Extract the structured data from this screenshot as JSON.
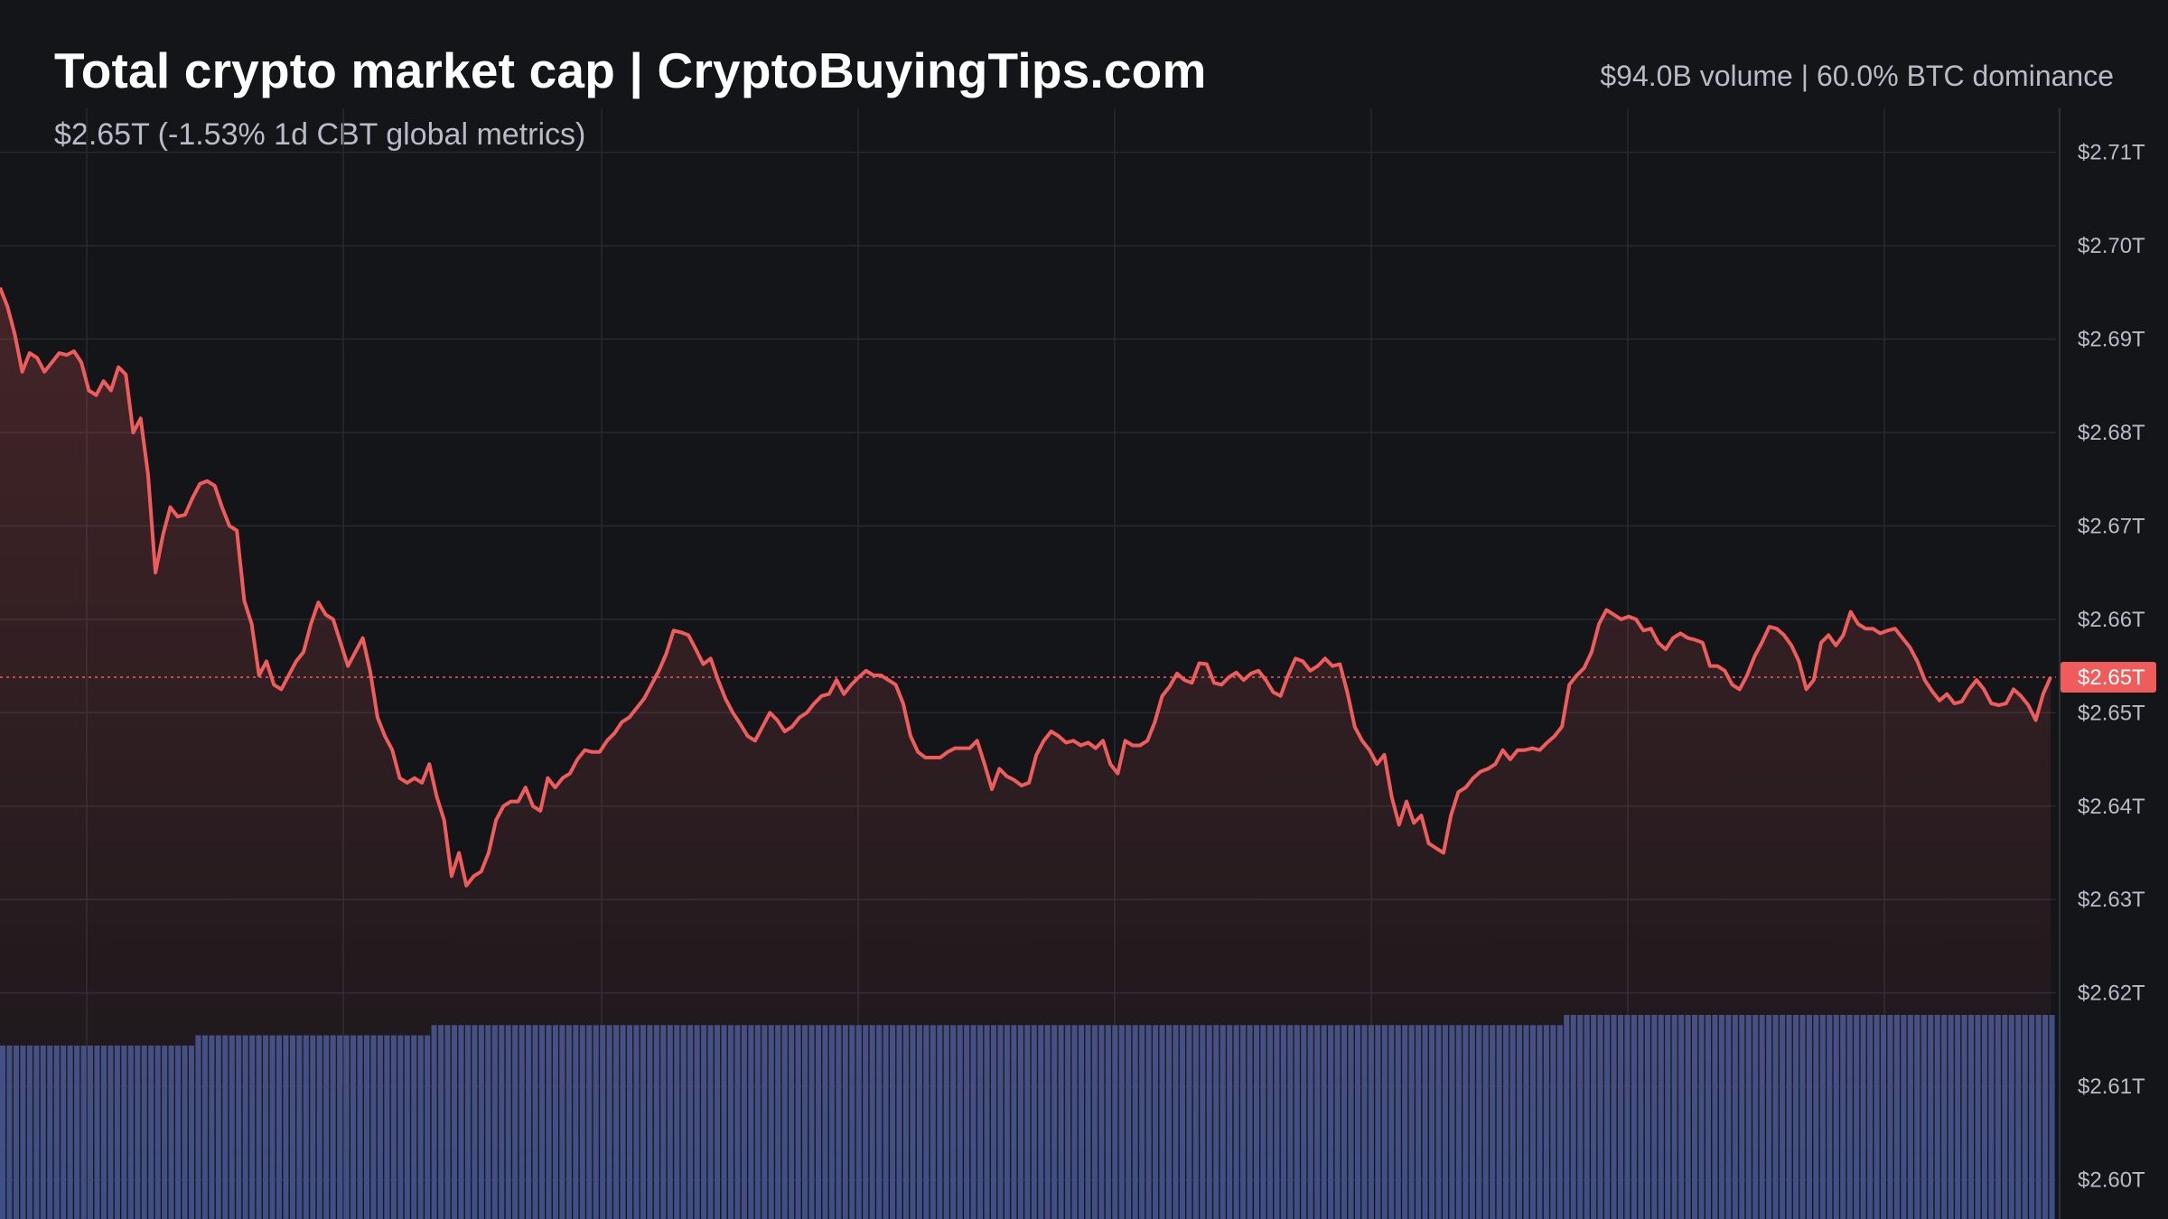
{
  "header": {
    "title": "Total crypto market cap | CryptoBuyingTips.com",
    "subtitle": "$2.65T (-1.53% 1d CBT global metrics)",
    "stats": "$94.0B volume | 60.0% BTC dominance"
  },
  "colors": {
    "background": "#131519",
    "line": "#f05c5c",
    "volume": "#3b4f86",
    "grid": "#262a31",
    "axis_text": "#b7bcc6",
    "price_tag_bg": "#f05c5c",
    "price_tag_text": "#ffffff"
  },
  "chart_data": {
    "type": "area",
    "title": "Total crypto market cap | CryptoBuyingTips.com",
    "ylabel": "",
    "xlabel": "",
    "y_ticks": [
      "$2.71T",
      "$2.70T",
      "$2.69T",
      "$2.68T",
      "$2.67T",
      "$2.66T",
      "$2.65T",
      "$2.64T",
      "$2.63T",
      "$2.62T",
      "$2.61T",
      "$2.60T"
    ],
    "y_tick_values": [
      2.71,
      2.7,
      2.69,
      2.68,
      2.67,
      2.66,
      2.65,
      2.64,
      2.63,
      2.62,
      2.61,
      2.6
    ],
    "ylim": [
      2.6,
      2.71
    ],
    "current_value": 2.6538,
    "current_label": "$2.65T",
    "grid": true,
    "series": [
      {
        "values": [
          2.6955,
          2.6935,
          2.6905,
          2.6865,
          2.6885,
          2.688,
          2.6865,
          2.6875,
          2.6885,
          2.6883,
          2.6887,
          2.6875,
          2.6845,
          2.684,
          2.6855,
          2.6845,
          2.687,
          2.6862,
          2.68,
          2.6815,
          2.6755,
          2.665,
          2.669,
          2.672,
          2.671,
          2.6712,
          2.673,
          2.6745,
          2.6748,
          2.6743,
          2.672,
          2.67,
          2.6695,
          2.662,
          2.6595,
          2.654,
          2.6555,
          2.653,
          2.6525,
          2.654,
          2.6555,
          2.6565,
          2.6595,
          2.6618,
          2.6605,
          2.66,
          2.6575,
          2.655,
          2.6565,
          2.658,
          2.6545,
          2.6495,
          2.6475,
          2.646,
          2.643,
          2.6425,
          2.643,
          2.6425,
          2.6445,
          2.641,
          2.6385,
          2.6325,
          2.635,
          2.6315,
          2.6325,
          2.633,
          2.635,
          2.6385,
          2.64,
          2.6405,
          2.6405,
          2.642,
          2.64,
          2.6395,
          2.643,
          2.642,
          2.643,
          2.6435,
          2.645,
          2.646,
          2.6458,
          2.6458,
          2.647,
          2.6478,
          2.649,
          2.6495,
          2.6505,
          2.6515,
          2.653,
          2.6545,
          2.6563,
          2.6588,
          2.6586,
          2.6583,
          2.6568,
          2.6552,
          2.6558,
          2.6535,
          2.6515,
          2.65,
          2.6488,
          2.6475,
          2.647,
          2.6485,
          2.65,
          2.6492,
          2.648,
          2.6485,
          2.6495,
          2.65,
          2.651,
          2.6518,
          2.652,
          2.6535,
          2.652,
          2.653,
          2.6538,
          2.6545,
          2.654,
          2.654,
          2.6535,
          2.653,
          2.651,
          2.6475,
          2.6458,
          2.6452,
          2.6452,
          2.6452,
          2.6458,
          2.6462,
          2.6462,
          2.6462,
          2.647,
          2.6445,
          2.6418,
          2.644,
          2.6432,
          2.6428,
          2.6422,
          2.6425,
          2.6455,
          2.647,
          2.648,
          2.6475,
          2.6468,
          2.647,
          2.6465,
          2.6468,
          2.6462,
          2.647,
          2.6445,
          2.6435,
          2.647,
          2.6465,
          2.6465,
          2.647,
          2.649,
          2.6518,
          2.6528,
          2.6542,
          2.6535,
          2.6532,
          2.6553,
          2.6552,
          2.6532,
          2.653,
          2.6538,
          2.6543,
          2.6535,
          2.6542,
          2.6545,
          2.6535,
          2.6522,
          2.6518,
          2.654,
          2.6558,
          2.6555,
          2.6545,
          2.655,
          2.6558,
          2.655,
          2.6552,
          2.6522,
          2.6485,
          2.647,
          2.646,
          2.6445,
          2.6455,
          2.641,
          2.638,
          2.6405,
          2.6382,
          2.639,
          2.636,
          2.6355,
          2.635,
          2.639,
          2.6415,
          2.642,
          2.643,
          2.6437,
          2.644,
          2.6445,
          2.646,
          2.645,
          2.646,
          2.646,
          2.6462,
          2.646,
          2.6468,
          2.6475,
          2.6485,
          2.653,
          2.654,
          2.6548,
          2.6565,
          2.6595,
          2.661,
          2.6605,
          2.66,
          2.6603,
          2.66,
          2.6588,
          2.659,
          2.6575,
          2.6568,
          2.658,
          2.6585,
          2.658,
          2.6578,
          2.6575,
          2.655,
          2.655,
          2.6545,
          2.653,
          2.6525,
          2.654,
          2.656,
          2.6575,
          2.6592,
          2.659,
          2.6583,
          2.6572,
          2.6555,
          2.6525,
          2.6535,
          2.6575,
          2.6583,
          2.6572,
          2.6583,
          2.6608,
          2.6595,
          2.659,
          2.659,
          2.6585,
          2.6588,
          2.659,
          2.658,
          2.657,
          2.6555,
          2.6535,
          2.6523,
          2.6513,
          2.652,
          2.651,
          2.6512,
          2.6525,
          2.6535,
          2.6525,
          2.651,
          2.6508,
          2.651,
          2.6525,
          2.6518,
          2.6508,
          2.6492,
          2.652,
          2.6538
        ]
      }
    ],
    "volume_bars": {
      "values": [
        17,
        17,
        17,
        17,
        17,
        17,
        17,
        17,
        17,
        17,
        17,
        17,
        17,
        17,
        17,
        17,
        17,
        17,
        17,
        17,
        17,
        17,
        17,
        17,
        17,
        17,
        17,
        17,
        17,
        18,
        18,
        18,
        18,
        18,
        18,
        18,
        18,
        18,
        18,
        18,
        18,
        18,
        18,
        18,
        18,
        18,
        18,
        18,
        18,
        18,
        18,
        18,
        18,
        18,
        18,
        18,
        18,
        18,
        18,
        18,
        18,
        18,
        18,
        18,
        19,
        19,
        19,
        19,
        19,
        19,
        19,
        19,
        19,
        19,
        19,
        19,
        19,
        19,
        19,
        19,
        19,
        19,
        19,
        19,
        19,
        19,
        19,
        19,
        19,
        19,
        19,
        19,
        19,
        19,
        19,
        19,
        19,
        19,
        19,
        19,
        19,
        19,
        19,
        19,
        19,
        19,
        19,
        19,
        19,
        19,
        19,
        19,
        19,
        19,
        19,
        19,
        19,
        19,
        19,
        19,
        19,
        19,
        19,
        19,
        19,
        19,
        19,
        19,
        19,
        19,
        19,
        19,
        19,
        19,
        19,
        19,
        19,
        19,
        19,
        19,
        19,
        19,
        19,
        19,
        19,
        19,
        19,
        19,
        19,
        19,
        19,
        19,
        19,
        19,
        19,
        19,
        19,
        19,
        19,
        19,
        19,
        19,
        19,
        19,
        19,
        19,
        19,
        19,
        19,
        19,
        19,
        19,
        19,
        19,
        19,
        19,
        19,
        19,
        19,
        19,
        19,
        19,
        19,
        19,
        19,
        19,
        19,
        19,
        19,
        19,
        19,
        19,
        19,
        19,
        19,
        19,
        19,
        19,
        19,
        19,
        19,
        19,
        19,
        19,
        19,
        19,
        19,
        19,
        19,
        19,
        19,
        19,
        19,
        19,
        19,
        19,
        19,
        19,
        19,
        19,
        19,
        19,
        19,
        19,
        19,
        19,
        19,
        19,
        19,
        19,
        19,
        19,
        20,
        20,
        20,
        20,
        20,
        20,
        20,
        20,
        20,
        20,
        20,
        20,
        20,
        20,
        20,
        20,
        20,
        20,
        20,
        20,
        20,
        20,
        20,
        20,
        20,
        20,
        20,
        20,
        20,
        20,
        20,
        20,
        20,
        20,
        20,
        20,
        20,
        20,
        20,
        20,
        20,
        20,
        20,
        20,
        20,
        20,
        20,
        20,
        20,
        20,
        20,
        20,
        20,
        20,
        20,
        20,
        20,
        20,
        20,
        20,
        20,
        20,
        20,
        20,
        20,
        20,
        20,
        20,
        20,
        20,
        20,
        20,
        20
      ]
    }
  }
}
